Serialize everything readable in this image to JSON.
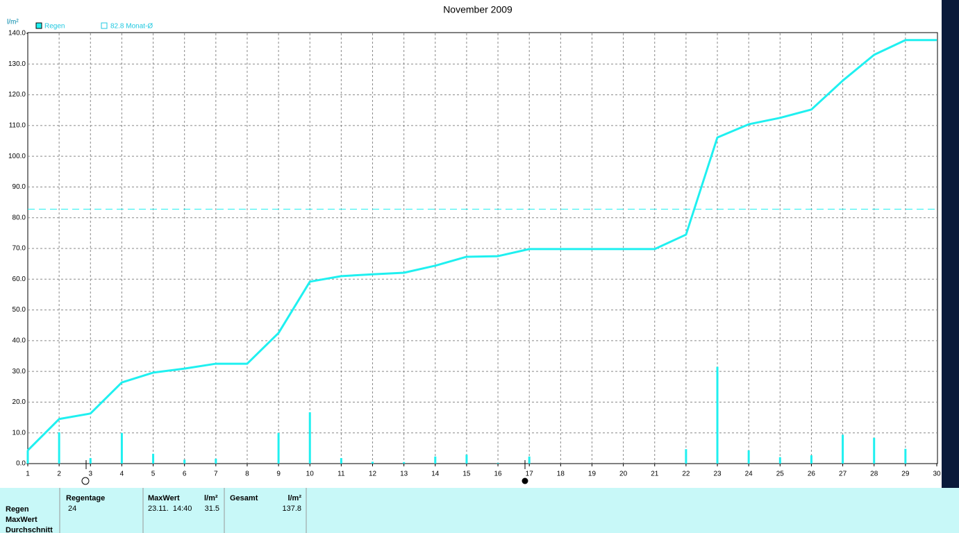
{
  "chart_data": {
    "type": "bar",
    "title": "November 2009",
    "y_unit": "l/m²",
    "x": [
      1,
      2,
      3,
      4,
      5,
      6,
      7,
      8,
      9,
      10,
      11,
      12,
      13,
      14,
      15,
      16,
      17,
      18,
      19,
      20,
      21,
      22,
      23,
      24,
      25,
      26,
      27,
      28,
      29,
      30
    ],
    "xlim": [
      1,
      30
    ],
    "xticks": [
      1,
      2,
      3,
      4,
      5,
      6,
      7,
      8,
      9,
      10,
      11,
      12,
      13,
      14,
      15,
      16,
      17,
      18,
      19,
      20,
      21,
      22,
      23,
      24,
      25,
      26,
      27,
      28,
      29,
      30
    ],
    "ylim": [
      0,
      140
    ],
    "yticks": [
      {
        "value": 0,
        "label": "0.0"
      },
      {
        "value": 10,
        "label": "10.0"
      },
      {
        "value": 20,
        "label": "20.0"
      },
      {
        "value": 30,
        "label": "30.0"
      },
      {
        "value": 40,
        "label": "40.0"
      },
      {
        "value": 50,
        "label": "50.0"
      },
      {
        "value": 60,
        "label": "60.0"
      },
      {
        "value": 70,
        "label": "70.0"
      },
      {
        "value": 80,
        "label": "80.0"
      },
      {
        "value": 90,
        "label": "90.0"
      },
      {
        "value": 100,
        "label": "100.0"
      },
      {
        "value": 110,
        "label": "110.0"
      },
      {
        "value": 120,
        "label": "120.0"
      },
      {
        "value": 130,
        "label": "130.0"
      },
      {
        "value": 140,
        "label": "140.0"
      }
    ],
    "grid": true,
    "series": [
      {
        "name": "Regen",
        "color": "#1ff0f0",
        "values": [
          4.3,
          10.2,
          1.8,
          10.0,
          3.2,
          1.3,
          1.6,
          0,
          10.0,
          16.7,
          1.8,
          0.6,
          0.5,
          2.3,
          2.9,
          0.2,
          2.3,
          0,
          0,
          0,
          0,
          4.7,
          31.5,
          4.3,
          2.1,
          2.7,
          9.4,
          8.4,
          4.8,
          0
        ],
        "cumulative": [
          4.3,
          14.5,
          16.3,
          26.4,
          29.6,
          30.9,
          32.5,
          32.5,
          42.5,
          59.2,
          61.0,
          61.6,
          62.1,
          64.4,
          67.3,
          67.5,
          69.8,
          69.8,
          69.8,
          69.8,
          69.8,
          74.5,
          106.1,
          110.4,
          112.5,
          115.2,
          124.6,
          133.0,
          137.8,
          137.8
        ]
      }
    ],
    "average": {
      "value": 82.8,
      "label": "82.8 Monat-Ø",
      "color": "#1ff0f0"
    }
  },
  "table": {
    "headers": [
      "Regentage",
      "MaxWert",
      "l/m²",
      "Gesamt",
      "l/m²"
    ],
    "row_labels": [
      "Regen",
      "MaxWert",
      "Durchschnitt"
    ],
    "cells": [
      24,
      "23.11.  14:40",
      31.5,
      137.8
    ]
  }
}
